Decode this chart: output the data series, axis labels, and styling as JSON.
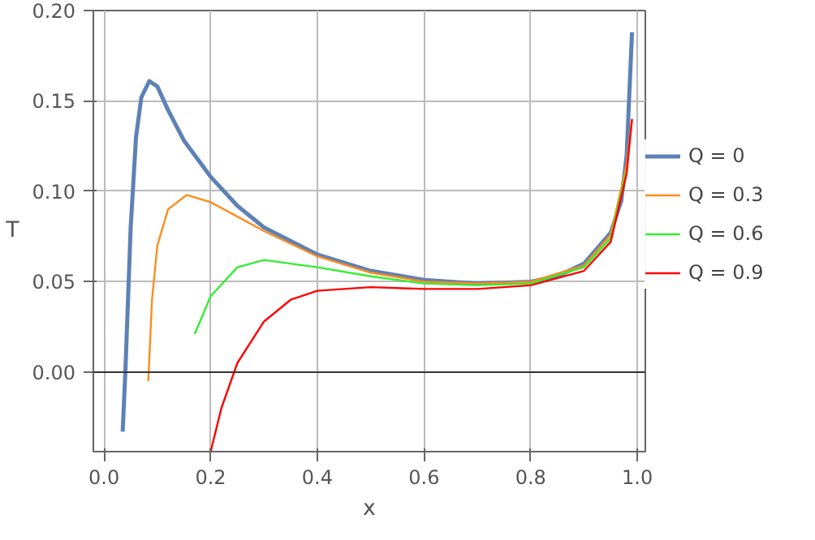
{
  "chart_data": {
    "type": "line",
    "xlabel": "x",
    "ylabel": "T",
    "xlim": [
      -0.02,
      1.015
    ],
    "ylim": [
      -0.044,
      0.2
    ],
    "xticks": [
      {
        "value": 0,
        "label": "0.0"
      },
      0.2,
      0.4,
      0.6,
      0.8,
      {
        "value": 1,
        "label": "1.0"
      }
    ],
    "yticks": [
      {
        "value": 0,
        "label": "0.00"
      },
      0.05,
      {
        "value": 0.1,
        "label": "0.10"
      },
      0.15,
      {
        "value": 0.2,
        "label": "0.20"
      }
    ],
    "grid": true,
    "legend": "right",
    "ref_lines": [
      {
        "axis": "y",
        "value": 0,
        "label": null,
        "color": "#333333"
      }
    ],
    "series": [
      {
        "name": "Q = 0",
        "color": "#5e81b5",
        "x": [
          0.035,
          0.04,
          0.05,
          0.06,
          0.07,
          0.085,
          0.1,
          0.12,
          0.15,
          0.2,
          0.25,
          0.3,
          0.4,
          0.5,
          0.6,
          0.7,
          0.8,
          0.85,
          0.9,
          0.95,
          0.97,
          0.98,
          0.99
        ],
        "values": [
          -0.033,
          0.0,
          0.08,
          0.13,
          0.152,
          0.161,
          0.158,
          0.145,
          0.128,
          0.108,
          0.092,
          0.08,
          0.065,
          0.056,
          0.051,
          0.049,
          0.05,
          0.053,
          0.06,
          0.077,
          0.095,
          0.12,
          0.188
        ]
      },
      {
        "name": "Q = 0.3",
        "color": "#ff8c1a",
        "x": [
          0.083,
          0.09,
          0.1,
          0.12,
          0.155,
          0.2,
          0.25,
          0.3,
          0.4,
          0.5,
          0.6,
          0.7,
          0.8,
          0.9,
          0.95,
          0.98,
          0.99
        ],
        "values": [
          -0.005,
          0.04,
          0.07,
          0.09,
          0.098,
          0.094,
          0.086,
          0.078,
          0.064,
          0.055,
          0.05,
          0.049,
          0.05,
          0.059,
          0.076,
          0.115,
          0.14
        ]
      },
      {
        "name": "Q = 0.6",
        "color": "#33ee33",
        "x": [
          0.17,
          0.2,
          0.25,
          0.3,
          0.4,
          0.5,
          0.6,
          0.7,
          0.8,
          0.9,
          0.95,
          0.98
        ],
        "values": [
          0.021,
          0.042,
          0.058,
          0.062,
          0.058,
          0.053,
          0.049,
          0.048,
          0.049,
          0.058,
          0.074,
          0.112
        ]
      },
      {
        "name": "Q = 0.9",
        "color": "#ff0000",
        "x": [
          0.2,
          0.22,
          0.25,
          0.3,
          0.35,
          0.4,
          0.5,
          0.6,
          0.7,
          0.8,
          0.9,
          0.95,
          0.98,
          0.99
        ],
        "values": [
          -0.044,
          -0.02,
          0.005,
          0.028,
          0.04,
          0.045,
          0.047,
          0.046,
          0.046,
          0.048,
          0.056,
          0.072,
          0.11,
          0.14
        ]
      }
    ]
  }
}
